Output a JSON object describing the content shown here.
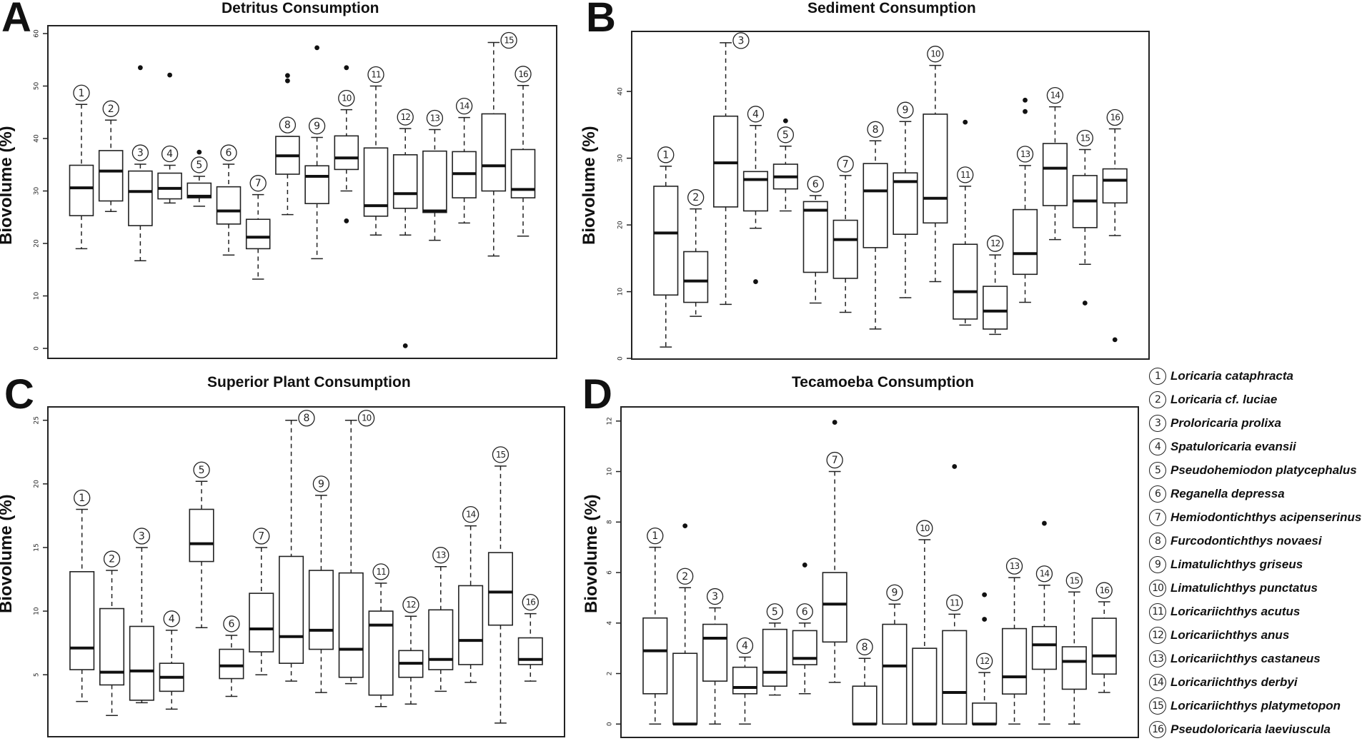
{
  "figure": {
    "panels": [
      {
        "letter": "A",
        "title": "Detritus Consumption",
        "ylabel": "Biovolume (%)"
      },
      {
        "letter": "B",
        "title": "Sediment Consumption",
        "ylabel": "Biovolume (%)"
      },
      {
        "letter": "C",
        "title": "Superior Plant Consumption",
        "ylabel": "Biovolume (%)"
      },
      {
        "letter": "D",
        "title": "Tecamoeba Consumption",
        "ylabel": "Biovolume (%)"
      }
    ],
    "legend": [
      {
        "num": "1",
        "name": "Loricaria cataphracta"
      },
      {
        "num": "2",
        "name": "Loricaria cf. luciae"
      },
      {
        "num": "3",
        "name": "Proloricaria prolixa"
      },
      {
        "num": "4",
        "name": "Spatuloricaria evansii"
      },
      {
        "num": "5",
        "name": "Pseudohemiodon platycephalus"
      },
      {
        "num": "6",
        "name": "Reganella depressa"
      },
      {
        "num": "7",
        "name": "Hemiodontichthys acipenserinus"
      },
      {
        "num": "8",
        "name": "Furcodontichthys novaesi"
      },
      {
        "num": "9",
        "name": "Limatulichthys griseus"
      },
      {
        "num": "10",
        "name": "Limatulichthys punctatus"
      },
      {
        "num": "11",
        "name": "Loricariichthys acutus"
      },
      {
        "num": "12",
        "name": "Loricariichthys anus"
      },
      {
        "num": "13",
        "name": "Loricariichthys castaneus"
      },
      {
        "num": "14",
        "name": "Loricariichthys derbyi"
      },
      {
        "num": "15",
        "name": "Loricariichthys platymetopon"
      },
      {
        "num": "16",
        "name": "Pseudoloricaria laeviuscula"
      }
    ]
  },
  "chart_data": [
    {
      "type": "boxplot",
      "panel": "A",
      "title": "Detritus Consumption",
      "xlabel": "",
      "ylabel": "Biovolume (%)",
      "ylim": [
        -1.9,
        61.5
      ],
      "yticks": [
        0,
        10,
        20,
        30,
        40,
        50,
        60
      ],
      "grid": false,
      "categories": [
        "1",
        "2",
        "3",
        "4",
        "5",
        "6",
        "7",
        "8",
        "9",
        "10",
        "11",
        "12",
        "13",
        "14",
        "15",
        "16"
      ],
      "boxes": [
        {
          "min": 19.0,
          "q1": 25.3,
          "median": 30.6,
          "q3": 34.9,
          "max": 46.5,
          "outliers": [],
          "label_pos": "top"
        },
        {
          "min": 26.1,
          "q1": 28.1,
          "median": 33.8,
          "q3": 37.7,
          "max": 43.5,
          "outliers": [],
          "label_pos": "top"
        },
        {
          "min": 16.7,
          "q1": 23.4,
          "median": 29.9,
          "q3": 33.8,
          "max": 35.1,
          "outliers": [
            53.5
          ],
          "label_pos": "top"
        },
        {
          "min": 27.7,
          "q1": 28.5,
          "median": 30.5,
          "q3": 33.4,
          "max": 34.9,
          "outliers": [
            52.1
          ],
          "label_pos": "top"
        },
        {
          "min": 27.1,
          "q1": 28.7,
          "median": 29.0,
          "q3": 31.5,
          "max": 32.8,
          "outliers": [
            37.4
          ],
          "label_pos": "top"
        },
        {
          "min": 17.8,
          "q1": 23.7,
          "median": 26.2,
          "q3": 30.8,
          "max": 35.1,
          "outliers": [],
          "label_pos": "top"
        },
        {
          "min": 13.2,
          "q1": 19.0,
          "median": 21.2,
          "q3": 24.6,
          "max": 29.3,
          "outliers": [],
          "label_pos": "top"
        },
        {
          "min": 25.5,
          "q1": 33.2,
          "median": 36.7,
          "q3": 40.4,
          "max": 40.4,
          "outliers": [
            51.0,
            52.0
          ],
          "label_pos": "top"
        },
        {
          "min": 17.1,
          "q1": 27.6,
          "median": 32.8,
          "q3": 34.8,
          "max": 40.2,
          "outliers": [
            57.3
          ],
          "label_pos": "top"
        },
        {
          "min": 30.0,
          "q1": 34.1,
          "median": 36.3,
          "q3": 40.5,
          "max": 45.5,
          "outliers": [
            53.5,
            24.3
          ],
          "label_pos": "top"
        },
        {
          "min": 21.6,
          "q1": 25.2,
          "median": 27.2,
          "q3": 38.2,
          "max": 50.0,
          "outliers": [],
          "label_pos": "top"
        },
        {
          "min": 21.6,
          "q1": 26.7,
          "median": 29.5,
          "q3": 36.9,
          "max": 41.9,
          "outliers": [
            0.5
          ],
          "label_pos": "top"
        },
        {
          "min": 20.6,
          "q1": 25.9,
          "median": 26.2,
          "q3": 37.6,
          "max": 41.7,
          "outliers": [],
          "label_pos": "top"
        },
        {
          "min": 23.9,
          "q1": 28.7,
          "median": 33.3,
          "q3": 37.5,
          "max": 44.0,
          "outliers": [],
          "label_pos": "top"
        },
        {
          "min": 17.6,
          "q1": 30.0,
          "median": 34.8,
          "q3": 44.7,
          "max": 58.3,
          "outliers": [],
          "label_pos": "right"
        },
        {
          "min": 21.4,
          "q1": 28.7,
          "median": 30.3,
          "q3": 37.9,
          "max": 50.1,
          "outliers": [],
          "label_pos": "top"
        }
      ]
    },
    {
      "type": "boxplot",
      "panel": "B",
      "title": "Sediment Consumption",
      "xlabel": "",
      "ylabel": "Biovolume (%)",
      "ylim": [
        -0.1,
        49.0
      ],
      "yticks": [
        0,
        10,
        20,
        30,
        40
      ],
      "grid": false,
      "categories": [
        "1",
        "2",
        "3",
        "4",
        "5",
        "6",
        "7",
        "8",
        "9",
        "10",
        "11",
        "12",
        "13",
        "14",
        "15",
        "16"
      ],
      "boxes": [
        {
          "min": 1.7,
          "q1": 9.5,
          "median": 18.8,
          "q3": 25.8,
          "max": 28.8,
          "outliers": [],
          "label_pos": "top"
        },
        {
          "min": 6.3,
          "q1": 8.4,
          "median": 11.6,
          "q3": 16.0,
          "max": 22.4,
          "outliers": [],
          "label_pos": "top"
        },
        {
          "min": 8.1,
          "q1": 22.7,
          "median": 29.3,
          "q3": 36.3,
          "max": 47.3,
          "outliers": [],
          "label_pos": "right"
        },
        {
          "min": 19.5,
          "q1": 22.1,
          "median": 26.8,
          "q3": 28.0,
          "max": 34.9,
          "outliers": [
            11.5
          ],
          "label_pos": "top"
        },
        {
          "min": 22.1,
          "q1": 25.4,
          "median": 27.2,
          "q3": 29.1,
          "max": 31.8,
          "outliers": [
            35.6
          ],
          "label_pos": "top"
        },
        {
          "min": 8.3,
          "q1": 12.9,
          "median": 22.2,
          "q3": 23.5,
          "max": 24.4,
          "outliers": [],
          "label_pos": "top"
        },
        {
          "min": 6.9,
          "q1": 12.0,
          "median": 17.8,
          "q3": 20.7,
          "max": 27.4,
          "outliers": [],
          "label_pos": "top"
        },
        {
          "min": 4.4,
          "q1": 16.6,
          "median": 25.1,
          "q3": 29.2,
          "max": 32.6,
          "outliers": [],
          "label_pos": "top"
        },
        {
          "min": 9.1,
          "q1": 18.6,
          "median": 26.5,
          "q3": 27.8,
          "max": 35.5,
          "outliers": [],
          "label_pos": "top"
        },
        {
          "min": 11.5,
          "q1": 20.3,
          "median": 24.0,
          "q3": 36.6,
          "max": 43.9,
          "outliers": [],
          "label_pos": "top"
        },
        {
          "min": 5.0,
          "q1": 5.9,
          "median": 10.0,
          "q3": 17.1,
          "max": 25.8,
          "outliers": [
            35.4
          ],
          "label_pos": "top"
        },
        {
          "min": 3.6,
          "q1": 4.4,
          "median": 7.1,
          "q3": 10.8,
          "max": 15.5,
          "outliers": [],
          "label_pos": "top"
        },
        {
          "min": 8.4,
          "q1": 12.6,
          "median": 15.7,
          "q3": 22.3,
          "max": 28.9,
          "outliers": [
            37.0,
            38.7
          ],
          "label_pos": "top"
        },
        {
          "min": 17.8,
          "q1": 22.9,
          "median": 28.5,
          "q3": 32.2,
          "max": 37.7,
          "outliers": [],
          "label_pos": "top"
        },
        {
          "min": 14.1,
          "q1": 19.6,
          "median": 23.6,
          "q3": 27.4,
          "max": 31.3,
          "outliers": [
            8.3
          ],
          "label_pos": "top"
        },
        {
          "min": 18.4,
          "q1": 23.3,
          "median": 26.7,
          "q3": 28.4,
          "max": 34.4,
          "outliers": [
            2.8
          ],
          "label_pos": "top"
        }
      ]
    },
    {
      "type": "boxplot",
      "panel": "C",
      "title": "Superior Plant Consumption",
      "xlabel": "",
      "ylabel": "Biovolume (%)",
      "ylim": [
        0.13,
        26.05
      ],
      "yticks": [
        5,
        10,
        15,
        20,
        25
      ],
      "grid": false,
      "categories": [
        "1",
        "2",
        "3",
        "4",
        "5",
        "6",
        "7",
        "8",
        "9",
        "10",
        "11",
        "12",
        "13",
        "14",
        "15",
        "16"
      ],
      "boxes": [
        {
          "min": 2.9,
          "q1": 5.4,
          "median": 7.1,
          "q3": 13.1,
          "max": 18.0,
          "outliers": [],
          "label_pos": "top"
        },
        {
          "min": 1.8,
          "q1": 4.2,
          "median": 5.2,
          "q3": 10.2,
          "max": 13.2,
          "outliers": [],
          "label_pos": "top"
        },
        {
          "min": 2.8,
          "q1": 3.0,
          "median": 5.3,
          "q3": 8.8,
          "max": 15.0,
          "outliers": [],
          "label_pos": "top"
        },
        {
          "min": 2.3,
          "q1": 3.7,
          "median": 4.8,
          "q3": 5.9,
          "max": 8.5,
          "outliers": [],
          "label_pos": "top"
        },
        {
          "min": 8.7,
          "q1": 13.9,
          "median": 15.3,
          "q3": 18.0,
          "max": 20.2,
          "outliers": [],
          "label_pos": "top"
        },
        {
          "min": 3.3,
          "q1": 4.7,
          "median": 5.7,
          "q3": 7.0,
          "max": 8.1,
          "outliers": [],
          "label_pos": "top"
        },
        {
          "min": 5.0,
          "q1": 6.8,
          "median": 8.6,
          "q3": 11.4,
          "max": 15.0,
          "outliers": [],
          "label_pos": "top"
        },
        {
          "min": 4.5,
          "q1": 5.9,
          "median": 8.0,
          "q3": 14.3,
          "max": 25.0,
          "outliers": [],
          "label_pos": "right"
        },
        {
          "min": 3.6,
          "q1": 7.0,
          "median": 8.5,
          "q3": 13.2,
          "max": 19.1,
          "outliers": [],
          "label_pos": "top"
        },
        {
          "min": 4.3,
          "q1": 4.8,
          "median": 7.0,
          "q3": 13.0,
          "max": 25.0,
          "outliers": [],
          "label_pos": "right"
        },
        {
          "min": 2.5,
          "q1": 3.4,
          "median": 8.9,
          "q3": 10.0,
          "max": 12.2,
          "outliers": [],
          "label_pos": "top"
        },
        {
          "min": 2.7,
          "q1": 4.8,
          "median": 5.9,
          "q3": 6.9,
          "max": 9.6,
          "outliers": [],
          "label_pos": "top"
        },
        {
          "min": 3.7,
          "q1": 5.4,
          "median": 6.2,
          "q3": 10.1,
          "max": 13.5,
          "outliers": [],
          "label_pos": "top"
        },
        {
          "min": 4.4,
          "q1": 5.8,
          "median": 7.7,
          "q3": 12.0,
          "max": 16.7,
          "outliers": [],
          "label_pos": "top"
        },
        {
          "min": 1.2,
          "q1": 8.9,
          "median": 11.5,
          "q3": 14.6,
          "max": 21.4,
          "outliers": [],
          "label_pos": "top"
        },
        {
          "min": 4.5,
          "q1": 5.8,
          "median": 6.2,
          "q3": 7.9,
          "max": 9.8,
          "outliers": [],
          "label_pos": "top"
        }
      ]
    },
    {
      "type": "boxplot",
      "panel": "D",
      "title": "Tecamoeba Consumption",
      "xlabel": "",
      "ylabel": "Biovolume (%)",
      "ylim": [
        -0.53,
        12.56
      ],
      "yticks": [
        0,
        2,
        4,
        6,
        8,
        10,
        12
      ],
      "grid": false,
      "categories": [
        "1",
        "2",
        "3",
        "4",
        "5",
        "6",
        "7",
        "8",
        "9",
        "10",
        "11",
        "12",
        "13",
        "14",
        "15",
        "16"
      ],
      "boxes": [
        {
          "min": 0.0,
          "q1": 1.2,
          "median": 2.9,
          "q3": 4.2,
          "max": 7.0,
          "outliers": [],
          "label_pos": "top"
        },
        {
          "min": 0.0,
          "q1": 0.0,
          "median": 0.0,
          "q3": 2.8,
          "max": 5.4,
          "outliers": [
            7.85
          ],
          "label_pos": "top"
        },
        {
          "min": 0.0,
          "q1": 1.7,
          "median": 3.4,
          "q3": 3.95,
          "max": 4.6,
          "outliers": [],
          "label_pos": "top"
        },
        {
          "min": 0.0,
          "q1": 1.2,
          "median": 1.45,
          "q3": 2.25,
          "max": 2.65,
          "outliers": [],
          "label_pos": "top"
        },
        {
          "min": 1.15,
          "q1": 1.5,
          "median": 2.05,
          "q3": 3.75,
          "max": 4.0,
          "outliers": [],
          "label_pos": "top"
        },
        {
          "min": 1.2,
          "q1": 2.35,
          "median": 2.6,
          "q3": 3.7,
          "max": 4.0,
          "outliers": [
            6.3
          ],
          "label_pos": "top"
        },
        {
          "min": 1.65,
          "q1": 3.25,
          "median": 4.75,
          "q3": 6.0,
          "max": 10.0,
          "outliers": [
            11.95
          ],
          "label_pos": "top"
        },
        {
          "min": 0.0,
          "q1": 0.0,
          "median": 0.0,
          "q3": 1.5,
          "max": 2.6,
          "outliers": [],
          "label_pos": "top"
        },
        {
          "min": 0.0,
          "q1": 0.0,
          "median": 2.3,
          "q3": 3.95,
          "max": 4.75,
          "outliers": [],
          "label_pos": "top"
        },
        {
          "min": 0.0,
          "q1": 0.0,
          "median": 0.0,
          "q3": 3.0,
          "max": 7.3,
          "outliers": [],
          "label_pos": "top"
        },
        {
          "min": 0.0,
          "q1": 0.0,
          "median": 1.25,
          "q3": 3.7,
          "max": 4.35,
          "outliers": [
            10.2
          ],
          "label_pos": "top"
        },
        {
          "min": 0.0,
          "q1": 0.0,
          "median": 0.0,
          "q3": 0.83,
          "max": 2.04,
          "outliers": [
            5.12,
            4.15
          ],
          "label_pos": "top"
        },
        {
          "min": 0.0,
          "q1": 1.19,
          "median": 1.87,
          "q3": 3.78,
          "max": 5.8,
          "outliers": [],
          "label_pos": "top"
        },
        {
          "min": 0.0,
          "q1": 2.17,
          "median": 3.14,
          "q3": 3.86,
          "max": 5.5,
          "outliers": [
            7.95
          ],
          "label_pos": "top"
        },
        {
          "min": 0.0,
          "q1": 1.38,
          "median": 2.48,
          "q3": 3.06,
          "max": 5.23,
          "outliers": [],
          "label_pos": "top"
        },
        {
          "min": 1.25,
          "q1": 1.98,
          "median": 2.7,
          "q3": 4.19,
          "max": 4.84,
          "outliers": [],
          "label_pos": "top"
        }
      ]
    }
  ]
}
